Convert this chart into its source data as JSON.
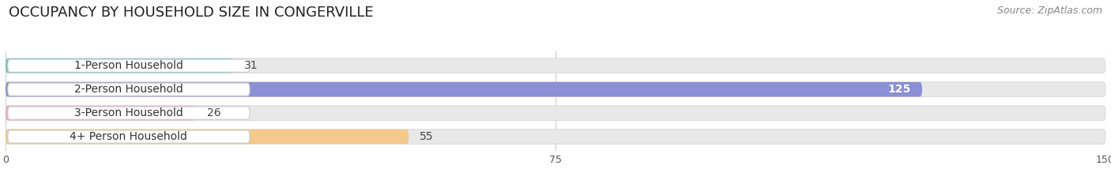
{
  "title": "OCCUPANCY BY HOUSEHOLD SIZE IN CONGERVILLE",
  "source": "Source: ZipAtlas.com",
  "categories": [
    "1-Person Household",
    "2-Person Household",
    "3-Person Household",
    "4+ Person Household"
  ],
  "values": [
    31,
    125,
    26,
    55
  ],
  "bar_colors": [
    "#69cdc8",
    "#8b8fd4",
    "#f5a8bc",
    "#f5c98a"
  ],
  "label_colors": [
    "#333333",
    "#333333",
    "#333333",
    "#333333"
  ],
  "value_label_colors": [
    "#444444",
    "#ffffff",
    "#444444",
    "#444444"
  ],
  "xlim": [
    0,
    150
  ],
  "xticks": [
    0,
    75,
    150
  ],
  "background_color": "#ffffff",
  "bar_background_color": "#e8e8e8",
  "pill_color": "#ffffff",
  "title_fontsize": 13,
  "source_fontsize": 9,
  "label_fontsize": 10,
  "value_fontsize": 10
}
